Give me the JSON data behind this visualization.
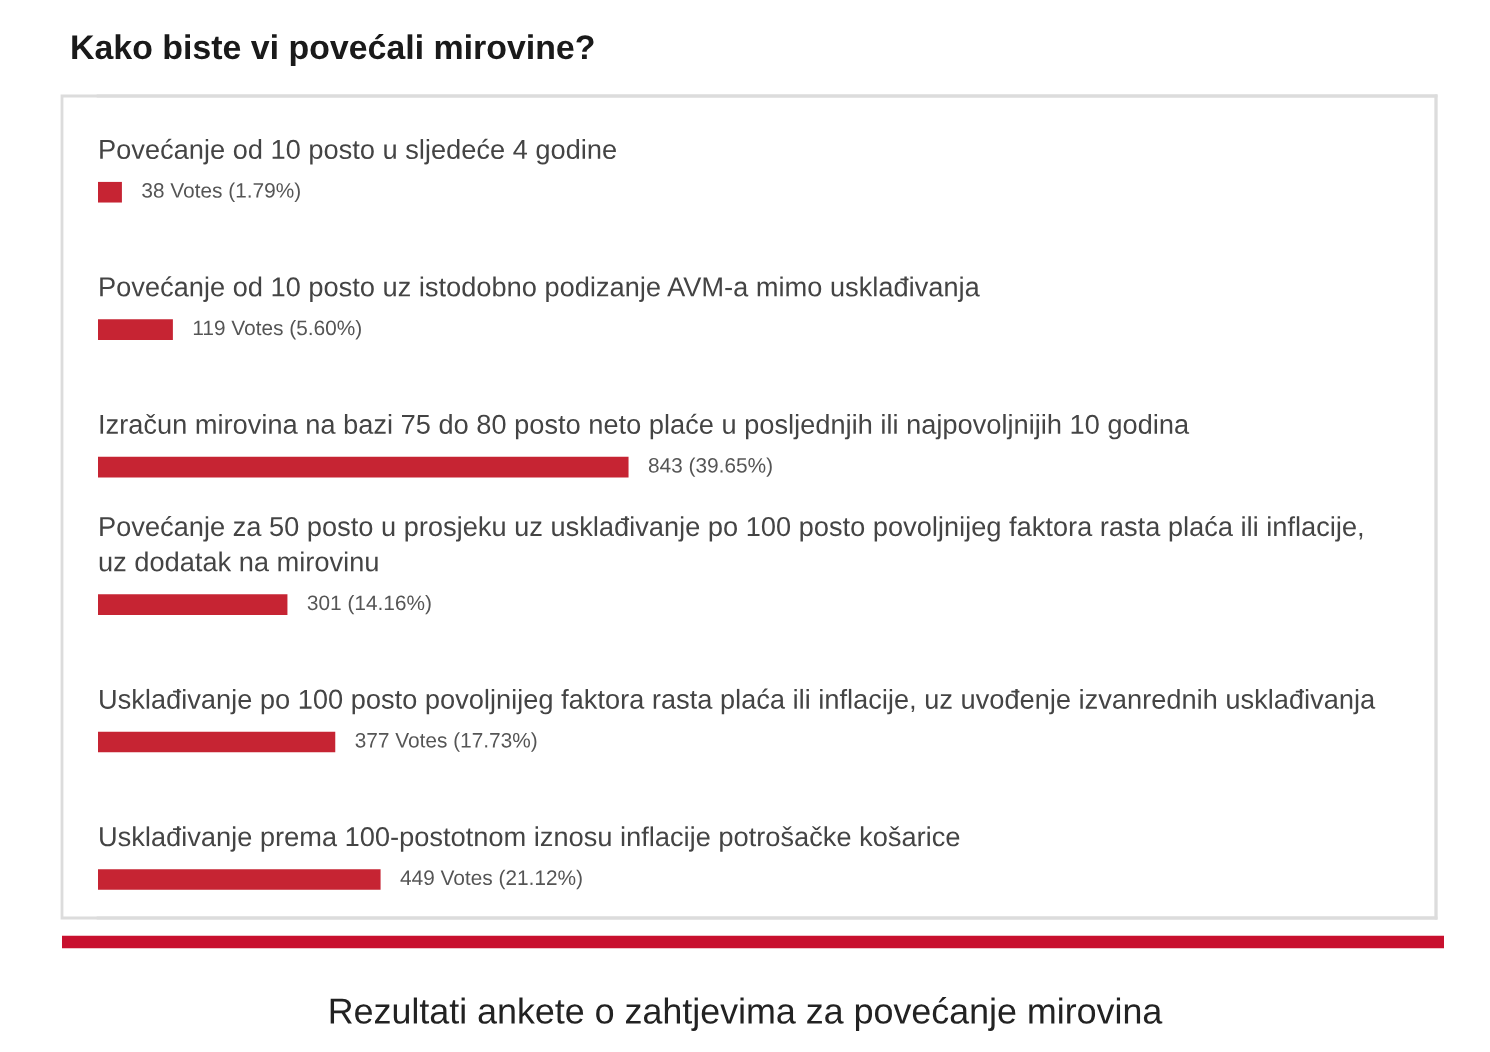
{
  "chart_data": {
    "type": "bar",
    "orientation": "horizontal",
    "title": "Kako biste vi povećali mirovine?",
    "categories": [
      "Povećanje od 10 posto u sljedeće 4 godine",
      "Povećanje od 10 posto uz istodobno podizanje AVM-a mimo usklađivanja",
      "Izračun mirovina na bazi 75 do 80 posto neto plaće u posljednjih ili najpovoljnijih 10 godina",
      "Povećanje za 50 posto u prosjeku uz usklađivanje po 100 posto povoljnijeg faktora rasta plaća ili inflacije,\nuz dodatak na mirovinu",
      "Usklađivanje po 100 posto povoljnijeg faktora rasta plaća ili inflacije, uz uvođenje izvanrednih usklađivanja",
      "Usklađivanje prema 100-postotnom iznosu inflacije potrošačke košarice"
    ],
    "values": [
      38,
      119,
      843,
      301,
      377,
      449
    ],
    "value_labels": [
      "38 Votes (1.79%)",
      "119 Votes (5.60%)",
      "843 (39.65%)",
      "301 (14.16%)",
      "377 Votes (17.73%)",
      "449 Votes (21.12%)"
    ],
    "color": "#c62433",
    "xlim": [
      0,
      2126
    ],
    "tick_labels": "y",
    "annotations": [
      "Rezultati ankete o zahtjevima za povećanje mirovina"
    ]
  }
}
